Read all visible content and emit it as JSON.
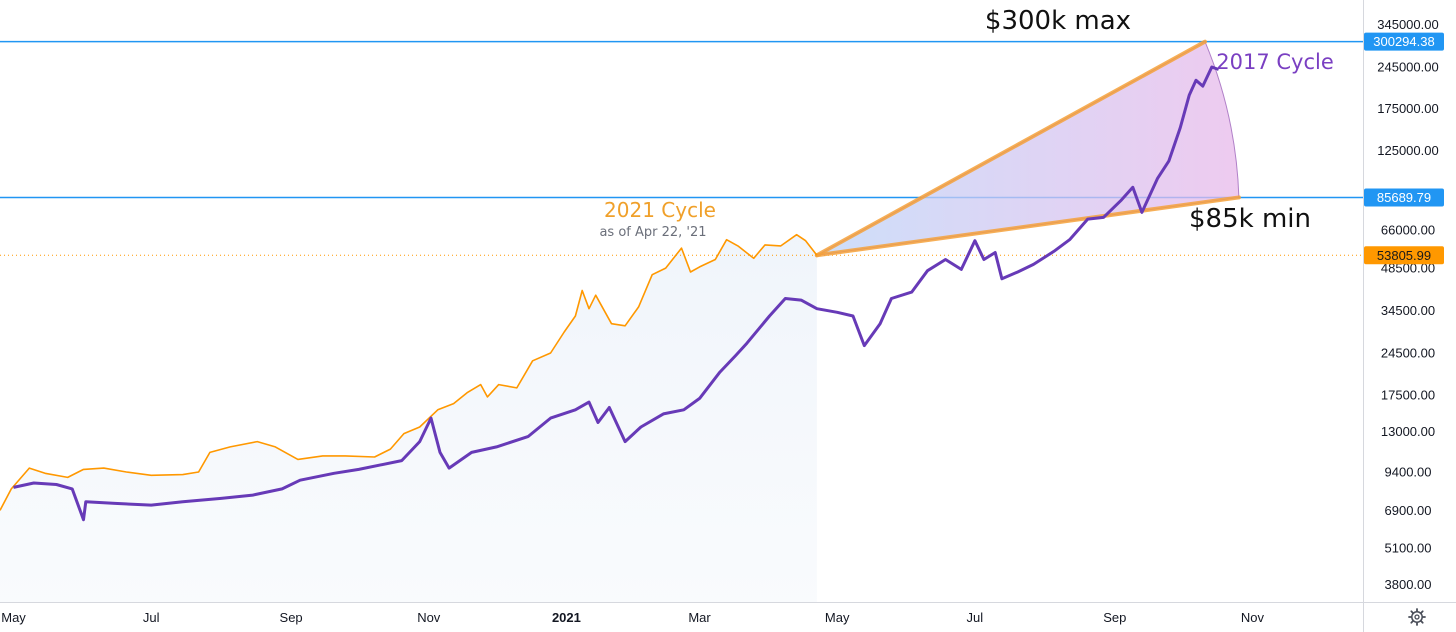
{
  "chart_data": {
    "type": "line",
    "scale": "log",
    "ylim": [
      3300,
      420000
    ],
    "x_range": [
      "2020-04-25",
      "2021-12-20"
    ],
    "y_ticks": [
      345000,
      245000,
      175000,
      125000,
      66000,
      48500,
      34500,
      24500,
      17500,
      13000,
      9400,
      6900,
      5100,
      3800
    ],
    "y_tick_labels": [
      "345000.00",
      "245000.00",
      "175000.00",
      "125000.00",
      "66000.00",
      "48500.00",
      "34500.00",
      "24500.00",
      "17500.00",
      "13000.00",
      "9400.00",
      "6900.00",
      "5100.00",
      "3800.00"
    ],
    "x_ticks": [
      {
        "date": "2020-05-01",
        "label": "May",
        "bold": false
      },
      {
        "date": "2020-07-01",
        "label": "Jul",
        "bold": false
      },
      {
        "date": "2020-09-01",
        "label": "Sep",
        "bold": false
      },
      {
        "date": "2020-11-01",
        "label": "Nov",
        "bold": false
      },
      {
        "date": "2021-01-01",
        "label": "2021",
        "bold": true
      },
      {
        "date": "2021-03-01",
        "label": "Mar",
        "bold": false
      },
      {
        "date": "2021-05-01",
        "label": "May",
        "bold": false
      },
      {
        "date": "2021-07-01",
        "label": "Jul",
        "bold": false
      },
      {
        "date": "2021-09-01",
        "label": "Sep",
        "bold": false
      },
      {
        "date": "2021-11-01",
        "label": "Nov",
        "bold": false
      }
    ],
    "price_labels": [
      {
        "value": 300294.38,
        "text": "300294.38",
        "color": "#2196f3"
      },
      {
        "value": 85689.79,
        "text": "85689.79",
        "color": "#2196f3"
      },
      {
        "value": 53805.99,
        "text": "53805.99",
        "color": "#ff9800"
      }
    ],
    "horizontal_lines": [
      {
        "value": 300294.38,
        "color": "#2196f3",
        "style": "solid"
      },
      {
        "value": 85689.79,
        "color": "#2196f3",
        "style": "solid"
      },
      {
        "value": 53805.99,
        "color": "#ff9800",
        "style": "dotted"
      }
    ],
    "series": [
      {
        "name": "2021 Cycle",
        "color": "#ff9800",
        "points": [
          [
            "2020-04-25",
            6900
          ],
          [
            "2020-04-30",
            8200
          ],
          [
            "2020-05-08",
            9700
          ],
          [
            "2020-05-15",
            9300
          ],
          [
            "2020-05-25",
            9000
          ],
          [
            "2020-06-01",
            9600
          ],
          [
            "2020-06-10",
            9700
          ],
          [
            "2020-06-20",
            9400
          ],
          [
            "2020-07-01",
            9150
          ],
          [
            "2020-07-15",
            9200
          ],
          [
            "2020-07-22",
            9400
          ],
          [
            "2020-07-27",
            11000
          ],
          [
            "2020-08-05",
            11500
          ],
          [
            "2020-08-17",
            12000
          ],
          [
            "2020-08-25",
            11500
          ],
          [
            "2020-09-04",
            10400
          ],
          [
            "2020-09-15",
            10700
          ],
          [
            "2020-09-25",
            10700
          ],
          [
            "2020-10-08",
            10600
          ],
          [
            "2020-10-15",
            11300
          ],
          [
            "2020-10-21",
            12800
          ],
          [
            "2020-10-28",
            13500
          ],
          [
            "2020-11-05",
            15500
          ],
          [
            "2020-11-12",
            16300
          ],
          [
            "2020-11-18",
            17800
          ],
          [
            "2020-11-24",
            19000
          ],
          [
            "2020-11-27",
            17200
          ],
          [
            "2020-12-02",
            19000
          ],
          [
            "2020-12-10",
            18500
          ],
          [
            "2020-12-17",
            23000
          ],
          [
            "2020-12-25",
            24500
          ],
          [
            "2020-12-31",
            29000
          ],
          [
            "2021-01-05",
            33000
          ],
          [
            "2021-01-08",
            40500
          ],
          [
            "2021-01-11",
            35000
          ],
          [
            "2021-01-14",
            39000
          ],
          [
            "2021-01-21",
            31000
          ],
          [
            "2021-01-27",
            30500
          ],
          [
            "2021-02-02",
            35500
          ],
          [
            "2021-02-08",
            46000
          ],
          [
            "2021-02-14",
            48500
          ],
          [
            "2021-02-21",
            57000
          ],
          [
            "2021-02-25",
            47000
          ],
          [
            "2021-03-01",
            49000
          ],
          [
            "2021-03-08",
            52000
          ],
          [
            "2021-03-13",
            61000
          ],
          [
            "2021-03-18",
            58000
          ],
          [
            "2021-03-25",
            52500
          ],
          [
            "2021-03-30",
            58500
          ],
          [
            "2021-04-06",
            58000
          ],
          [
            "2021-04-13",
            63500
          ],
          [
            "2021-04-17",
            60500
          ],
          [
            "2021-04-22",
            53806
          ]
        ]
      },
      {
        "name": "2017 Cycle",
        "color": "#673ab7",
        "points": [
          [
            "2020-05-01",
            8300
          ],
          [
            "2020-05-10",
            8600
          ],
          [
            "2020-05-20",
            8500
          ],
          [
            "2020-05-27",
            8200
          ],
          [
            "2020-06-01",
            6400
          ],
          [
            "2020-06-02",
            7400
          ],
          [
            "2020-06-15",
            7300
          ],
          [
            "2020-07-01",
            7200
          ],
          [
            "2020-07-15",
            7400
          ],
          [
            "2020-08-01",
            7600
          ],
          [
            "2020-08-15",
            7800
          ],
          [
            "2020-08-28",
            8200
          ],
          [
            "2020-09-05",
            8800
          ],
          [
            "2020-09-20",
            9300
          ],
          [
            "2020-10-01",
            9600
          ],
          [
            "2020-10-20",
            10300
          ],
          [
            "2020-10-28",
            12000
          ],
          [
            "2020-11-02",
            14500
          ],
          [
            "2020-11-06",
            11000
          ],
          [
            "2020-11-10",
            9700
          ],
          [
            "2020-11-20",
            11000
          ],
          [
            "2020-12-01",
            11500
          ],
          [
            "2020-12-15",
            12500
          ],
          [
            "2020-12-25",
            14500
          ],
          [
            "2021-01-05",
            15500
          ],
          [
            "2021-01-11",
            16500
          ],
          [
            "2021-01-15",
            14000
          ],
          [
            "2021-01-20",
            15800
          ],
          [
            "2021-01-27",
            12000
          ],
          [
            "2021-02-03",
            13500
          ],
          [
            "2021-02-13",
            15000
          ],
          [
            "2021-02-22",
            15500
          ],
          [
            "2021-03-01",
            17000
          ],
          [
            "2021-03-10",
            21000
          ],
          [
            "2021-03-17",
            24000
          ],
          [
            "2021-03-22",
            26500
          ],
          [
            "2021-04-01",
            33000
          ],
          [
            "2021-04-08",
            38000
          ],
          [
            "2021-04-15",
            37500
          ],
          [
            "2021-04-22",
            35000
          ],
          [
            "2021-05-01",
            34000
          ],
          [
            "2021-05-08",
            33000
          ],
          [
            "2021-05-13",
            26000
          ],
          [
            "2021-05-20",
            31000
          ],
          [
            "2021-05-25",
            38000
          ],
          [
            "2021-06-03",
            40000
          ],
          [
            "2021-06-10",
            47500
          ],
          [
            "2021-06-18",
            52000
          ],
          [
            "2021-06-25",
            48000
          ],
          [
            "2021-07-01",
            60500
          ],
          [
            "2021-07-05",
            52000
          ],
          [
            "2021-07-10",
            55000
          ],
          [
            "2021-07-13",
            44500
          ],
          [
            "2021-07-20",
            47000
          ],
          [
            "2021-07-27",
            50000
          ],
          [
            "2021-08-05",
            55500
          ],
          [
            "2021-08-12",
            61000
          ],
          [
            "2021-08-20",
            72000
          ],
          [
            "2021-08-27",
            73000
          ],
          [
            "2021-09-04",
            84000
          ],
          [
            "2021-09-09",
            93000
          ],
          [
            "2021-09-13",
            76000
          ],
          [
            "2021-09-20",
            100000
          ],
          [
            "2021-09-25",
            115000
          ],
          [
            "2021-09-30",
            150000
          ],
          [
            "2021-10-04",
            195000
          ],
          [
            "2021-10-07",
            220000
          ],
          [
            "2021-10-10",
            210000
          ],
          [
            "2021-10-14",
            245000
          ],
          [
            "2021-10-17",
            240000
          ]
        ]
      }
    ],
    "wedge": {
      "apex": [
        "2021-04-22",
        53806
      ],
      "max_end": [
        "2021-10-11",
        300294.38
      ],
      "min_end": [
        "2021-10-26",
        85689.79
      ]
    },
    "annotations": {
      "max_label": "$300k max",
      "min_label": "$85k min",
      "cycle_2017": "2017 Cycle",
      "cycle_2021": "2021 Cycle",
      "as_of": "as of Apr 22, '21"
    }
  }
}
